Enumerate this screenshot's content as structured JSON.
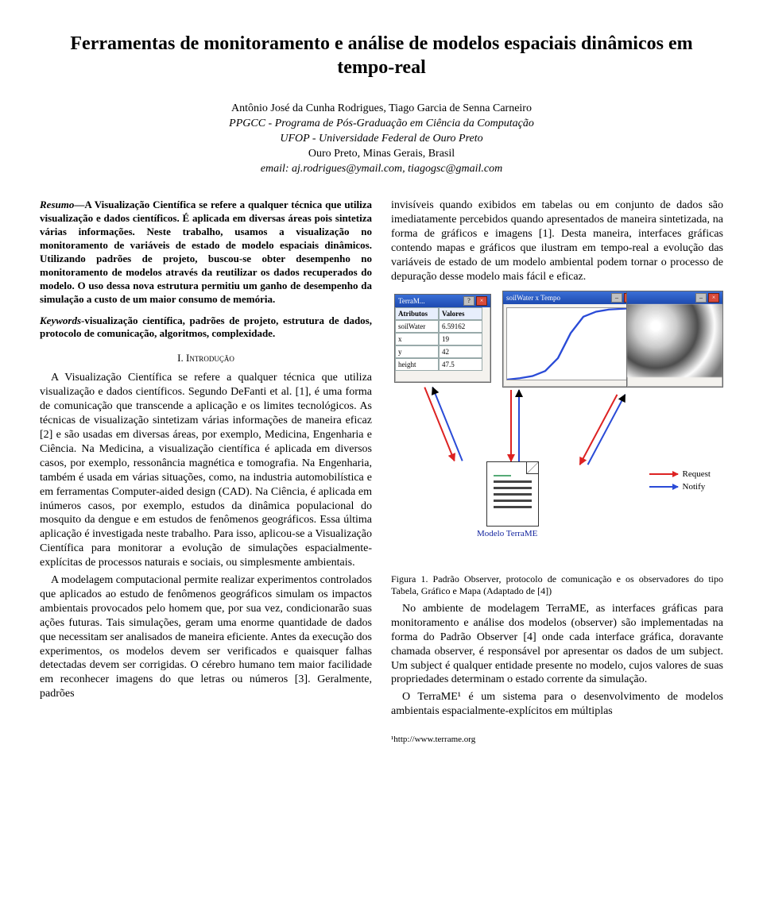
{
  "title": "Ferramentas de monitoramento e análise de modelos espaciais dinâmicos em tempo-real",
  "authors": {
    "names": "Antônio José da Cunha Rodrigues, Tiago Garcia de Senna Carneiro",
    "affil1": "PPGCC - Programa de Pós-Graduação em Ciência da Computação",
    "affil2": "UFOP - Universidade Federal de Ouro Preto",
    "affil3": "Ouro Preto, Minas Gerais, Brasil",
    "email": "email: aj.rodrigues@ymail.com, tiagogsc@gmail.com"
  },
  "abstract_lead": "Resumo",
  "abstract_text": "—A Visualização Científica se refere a qualquer técnica que utiliza visualização e dados científicos. É aplicada em diversas áreas pois sintetiza várias informações. Neste trabalho, usamos a visualização no monitoramento de variáveis de estado de modelo espaciais dinâmicos. Utilizando padrões de projeto, buscou-se obter desempenho no monitoramento de modelos através da reutilizar os dados recuperados do modelo. O uso dessa nova estrutura permitiu um ganho de desempenho da simulação a custo de um maior consumo de memória.",
  "keywords_lead": "Keywords",
  "keywords_text": "-visualização científica, padrões de projeto, estrutura de dados, protocolo de comunicação, algoritmos, complexidade.",
  "section_intro": "I.   Introdução",
  "intro_p1": "A Visualização Científica se refere a qualquer técnica que utiliza visualização e dados científicos. Segundo DeFanti et al. [1], é uma forma de comunicação que transcende a aplicação e os limites tecnológicos. As técnicas de visualização sintetizam várias informações de maneira eficaz [2] e são usadas em diversas áreas, por exemplo, Medicina, Engenharia e Ciência. Na Medicina, a visualização científica é aplicada em diversos casos, por exemplo, ressonância magnética e tomografia. Na Engenharia, também é usada em várias situações, como, na industria automobilística e em ferramentas Computer-aided design (CAD). Na Ciência, é aplicada em inúmeros casos, por exemplo, estudos da dinâmica populacional do mosquito da dengue e em estudos de fenômenos geográficos. Essa última aplicação é investigada neste trabalho. Para isso, aplicou-se a Visualização Científica para monitorar a evolução de simulações espacialmente-explícitas de processos naturais e sociais, ou simplesmente ambientais.",
  "intro_p2": "A modelagem computacional permite realizar experimentos controlados que aplicados ao estudo de fenômenos geográficos simulam os impactos ambientais provocados pelo homem que, por sua vez, condicionarão suas ações futuras. Tais simulações, geram uma enorme quantidade de dados que necessitam ser analisados de maneira eficiente. Antes da execução dos experimentos, os modelos devem ser verificados e quaisquer falhas detectadas devem ser corrigidas. O cérebro humano tem maior facilidade em reconhecer imagens do que letras ou números [3]. Geralmente, padrões",
  "right_p1": "invisíveis quando exibidos em tabelas ou em conjunto de dados são imediatamente percebidos quando apresentados de maneira sintetizada, na forma de gráficos e imagens [1]. Desta maneira, interfaces gráficas contendo mapas e gráficos que ilustram em tempo-real a evolução das variáveis de estado de um modelo ambiental podem tornar o processo de depuração desse modelo mais fácil e eficaz.",
  "fig1": {
    "windows": {
      "table": {
        "title": "TerraM...",
        "cols": [
          "Atributos",
          "Valores"
        ],
        "rows": [
          [
            "soilWater",
            "6.59162"
          ],
          [
            "x",
            "19"
          ],
          [
            "y",
            "42"
          ],
          [
            "height",
            "47.5"
          ]
        ]
      },
      "chart": {
        "title": "",
        "xlabel": "soilWater x Tempo",
        "data_x": [
          0,
          10,
          20,
          30,
          40,
          50,
          60,
          70,
          80,
          90,
          100
        ],
        "data_y": [
          0,
          0.02,
          0.05,
          0.12,
          0.3,
          0.65,
          0.88,
          0.95,
          0.98,
          0.99,
          1.0
        ],
        "line_color": "#2a4bd7",
        "xlim": [
          0,
          100
        ],
        "ylim": [
          0,
          1
        ]
      },
      "map": {
        "title": ""
      }
    },
    "doc_label": "Modelo TerraME",
    "legend": {
      "request": "Request",
      "notify": "Notify"
    },
    "arrow_colors": {
      "request": "#d22222",
      "notify": "#2a4bd7"
    },
    "caption": "Figura 1.    Padrão Observer, protocolo de comunicação e os observadores do tipo Tabela, Gráfico e Mapa (Adaptado de  [4])"
  },
  "right_p2": "No ambiente de modelagem TerraME, as interfaces gráficas para monitoramento e análise dos modelos (observer) são implementadas na forma do Padrão Observer [4] onde cada interface gráfica, doravante chamada observer, é responsável por apresentar os dados de um subject. Um subject é qualquer entidade presente no modelo, cujos valores de suas propriedades determinam o estado corrente da simulação.",
  "right_p3": "O TerraME¹ é um sistema para o desenvolvimento de modelos ambientais espacialmente-explícitos em múltiplas",
  "footnote": "¹http://www.terrame.org"
}
